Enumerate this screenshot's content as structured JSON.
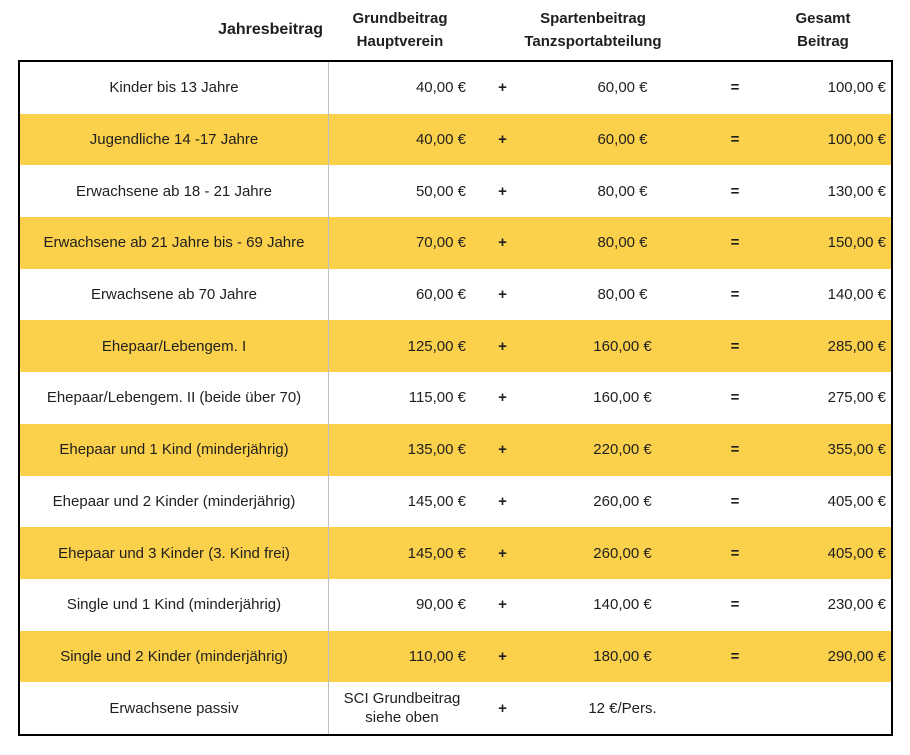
{
  "table": {
    "header": {
      "jahresbeitrag": "Jahresbeitrag",
      "grund_line1": "Grundbeitrag",
      "grund_line2": "Hauptverein",
      "sparten_line1": "Spartenbeitrag",
      "sparten_line2": "Tanzsportabteilung",
      "gesamt_line1": "Gesamt",
      "gesamt_line2": "Beitrag"
    },
    "rows": [
      {
        "label": "Kinder bis 13 Jahre",
        "grund": "40,00 €",
        "plus": "+",
        "sparten": "60,00 €",
        "eq": "=",
        "gesamt": "100,00 €",
        "highlight": false
      },
      {
        "label": "Jugendliche 14 -17 Jahre",
        "grund": "40,00 €",
        "plus": "+",
        "sparten": "60,00 €",
        "eq": "=",
        "gesamt": "100,00 €",
        "highlight": true
      },
      {
        "label": "Erwachsene ab 18 - 21 Jahre",
        "grund": "50,00 €",
        "plus": "+",
        "sparten": "80,00 €",
        "eq": "=",
        "gesamt": "130,00 €",
        "highlight": false
      },
      {
        "label": "Erwachsene ab 21 Jahre bis - 69 Jahre",
        "grund": "70,00 €",
        "plus": "+",
        "sparten": "80,00 €",
        "eq": "=",
        "gesamt": "150,00 €",
        "highlight": true
      },
      {
        "label": "Erwachsene ab 70 Jahre",
        "grund": "60,00 €",
        "plus": "+",
        "sparten": "80,00 €",
        "eq": "=",
        "gesamt": "140,00 €",
        "highlight": false
      },
      {
        "label": "Ehepaar/Lebengem. I",
        "grund": "125,00 €",
        "plus": "+",
        "sparten": "160,00 €",
        "eq": "=",
        "gesamt": "285,00 €",
        "highlight": true
      },
      {
        "label": "Ehepaar/Lebengem. II (beide über 70)",
        "grund": "115,00 €",
        "plus": "+",
        "sparten": "160,00 €",
        "eq": "=",
        "gesamt": "275,00 €",
        "highlight": false
      },
      {
        "label": "Ehepaar und 1 Kind (minderjährig)",
        "grund": "135,00 €",
        "plus": "+",
        "sparten": "220,00 €",
        "eq": "=",
        "gesamt": "355,00 €",
        "highlight": true
      },
      {
        "label": "Ehepaar und 2 Kinder (minderjährig)",
        "grund": "145,00 €",
        "plus": "+",
        "sparten": "260,00 €",
        "eq": "=",
        "gesamt": "405,00 €",
        "highlight": false
      },
      {
        "label": "Ehepaar und 3 Kinder (3. Kind frei)",
        "grund": "145,00 €",
        "plus": "+",
        "sparten": "260,00 €",
        "eq": "=",
        "gesamt": "405,00 €",
        "highlight": true
      },
      {
        "label": "Single und 1 Kind (minderjährig)",
        "grund": "90,00 €",
        "plus": "+",
        "sparten": "140,00 €",
        "eq": "=",
        "gesamt": "230,00 €",
        "highlight": false
      },
      {
        "label": "Single und 2 Kinder (minderjährig)",
        "grund": "110,00 €",
        "plus": "+",
        "sparten": "180,00 €",
        "eq": "=",
        "gesamt": "290,00 €",
        "highlight": true
      },
      {
        "label": "Erwachsene passiv",
        "grund": "SCI Grundbeitrag siehe oben",
        "plus": "+",
        "sparten": "12 €/Pers.",
        "eq": "",
        "gesamt": "",
        "highlight": false,
        "passive": true
      }
    ],
    "colors": {
      "highlight_row": "#FBD04B",
      "table_border": "#000000",
      "column_divider": "#BFBFBF",
      "text": "#1F1F1F",
      "background": "#FFFFFF"
    }
  }
}
